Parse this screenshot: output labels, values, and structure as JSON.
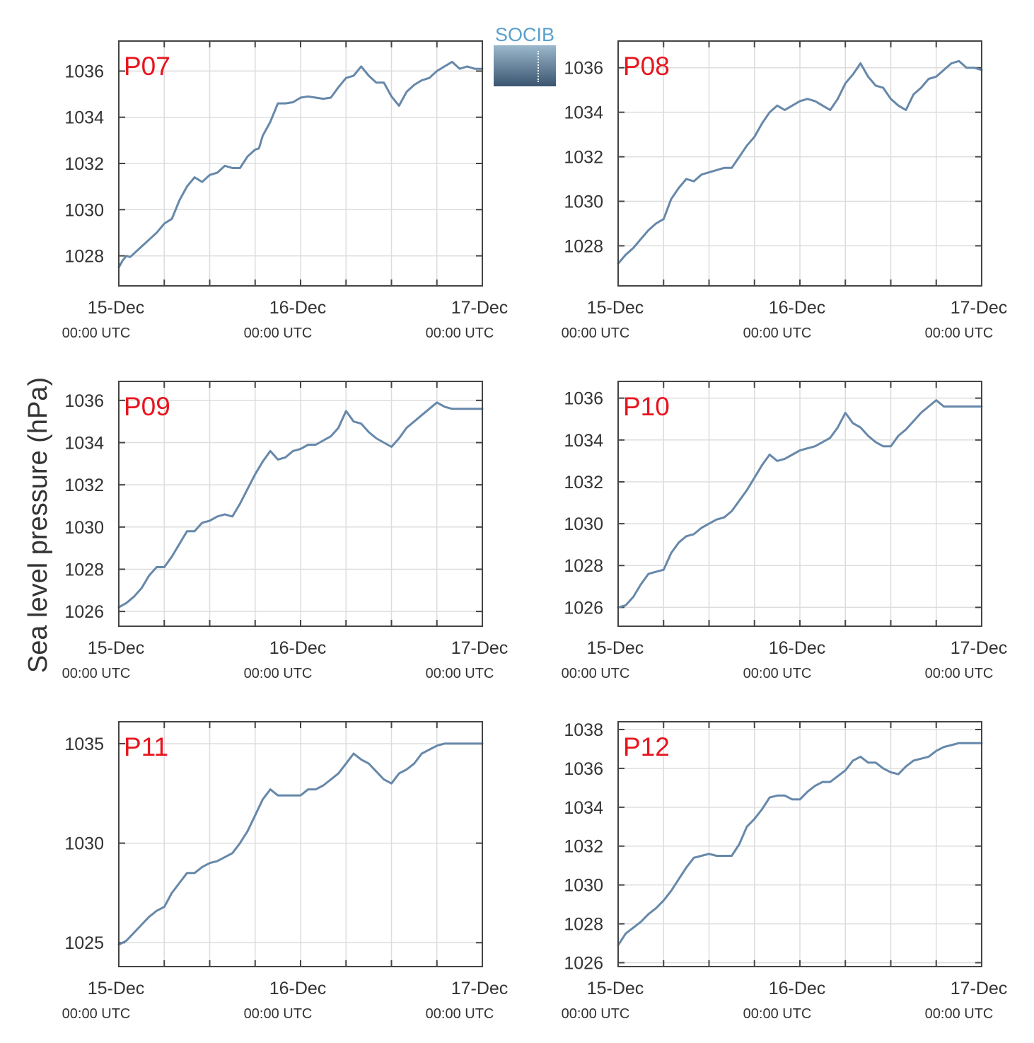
{
  "figure": {
    "ylabel": "Sea level pressure (hPa)",
    "logo_text": "SOCIB"
  },
  "style": {
    "line_color": "#6688aa",
    "label_color": "#e8141e",
    "grid_color": "#dddddd",
    "axis_color": "#444444",
    "text_color": "#333333"
  },
  "chart_data": [
    {
      "type": "line",
      "title": "P07",
      "grid": true,
      "xlabel": "",
      "ylabel": "Sea level pressure (hPa)",
      "x_ticks": [
        {
          "hours": 0,
          "date": "15-Dec",
          "time": "00:00 UTC"
        },
        {
          "hours": 24,
          "date": "16-Dec",
          "time": "00:00 UTC"
        },
        {
          "hours": 48,
          "date": "17-Dec",
          "time": "00:00 UTC"
        }
      ],
      "x_minor_ticks_hours": [
        0,
        6,
        12,
        18,
        24,
        30,
        36,
        42,
        48
      ],
      "xlim_hours": [
        0,
        48
      ],
      "ylim": [
        1026.7,
        1037.3
      ],
      "yticks": [
        1028,
        1030,
        1032,
        1034,
        1036
      ],
      "series": [
        {
          "x_hours": [
            0,
            0.5,
            1,
            1.5,
            2,
            3,
            4,
            5,
            6,
            7,
            8,
            8.5,
            9,
            10,
            11,
            12,
            13,
            14,
            15,
            16,
            17,
            18,
            18.5,
            19,
            20,
            21,
            22,
            23,
            24,
            25,
            26,
            27,
            28,
            29,
            30,
            31,
            32,
            33,
            34,
            35,
            36,
            37,
            38,
            39,
            40,
            41,
            42,
            43,
            44,
            45,
            46,
            47,
            48
          ],
          "values": [
            1027.5,
            1027.8,
            1028.0,
            1027.95,
            1028.1,
            1028.4,
            1028.7,
            1029.0,
            1029.4,
            1029.6,
            1030.4,
            1030.7,
            1031.0,
            1031.4,
            1031.2,
            1031.5,
            1031.6,
            1031.9,
            1031.8,
            1031.8,
            1032.3,
            1032.6,
            1032.65,
            1033.2,
            1033.8,
            1034.6,
            1034.6,
            1034.65,
            1034.85,
            1034.9,
            1034.85,
            1034.8,
            1034.85,
            1035.3,
            1035.7,
            1035.8,
            1036.2,
            1035.8,
            1035.5,
            1035.5,
            1034.9,
            1034.5,
            1035.1,
            1035.4,
            1035.6,
            1035.7,
            1036.0,
            1036.2,
            1036.4,
            1036.1,
            1036.2,
            1036.1,
            1036.1
          ]
        }
      ]
    },
    {
      "type": "line",
      "title": "P08",
      "grid": true,
      "xlabel": "",
      "ylabel": "Sea level pressure (hPa)",
      "x_ticks": [
        {
          "hours": 0,
          "date": "15-Dec",
          "time": "00:00 UTC"
        },
        {
          "hours": 24,
          "date": "16-Dec",
          "time": "00:00 UTC"
        },
        {
          "hours": 48,
          "date": "17-Dec",
          "time": "00:00 UTC"
        }
      ],
      "x_minor_ticks_hours": [
        0,
        6,
        12,
        18,
        24,
        30,
        36,
        42,
        48
      ],
      "xlim_hours": [
        0,
        48
      ],
      "ylim": [
        1026.2,
        1037.2
      ],
      "yticks": [
        1028,
        1030,
        1032,
        1034,
        1036
      ],
      "series": [
        {
          "x_hours": [
            0,
            1,
            2,
            3,
            4,
            5,
            6,
            7,
            8,
            9,
            10,
            11,
            12,
            13,
            14,
            15,
            16,
            17,
            18,
            19,
            20,
            21,
            22,
            23,
            24,
            25,
            26,
            27,
            28,
            29,
            30,
            31,
            32,
            33,
            34,
            35,
            36,
            37,
            38,
            39,
            40,
            41,
            42,
            43,
            44,
            45,
            46,
            47,
            48
          ],
          "values": [
            1027.2,
            1027.6,
            1027.9,
            1028.3,
            1028.7,
            1029.0,
            1029.2,
            1030.1,
            1030.6,
            1031.0,
            1030.9,
            1031.2,
            1031.3,
            1031.4,
            1031.5,
            1031.5,
            1032.0,
            1032.5,
            1032.9,
            1033.5,
            1034.0,
            1034.3,
            1034.1,
            1034.3,
            1034.5,
            1034.6,
            1034.5,
            1034.3,
            1034.1,
            1034.6,
            1035.3,
            1035.7,
            1036.2,
            1035.6,
            1035.2,
            1035.1,
            1034.6,
            1034.3,
            1034.1,
            1034.8,
            1035.1,
            1035.5,
            1035.6,
            1035.9,
            1036.2,
            1036.3,
            1036.0,
            1036.0,
            1035.9
          ]
        }
      ]
    },
    {
      "type": "line",
      "title": "P09",
      "grid": true,
      "xlabel": "",
      "ylabel": "Sea level pressure (hPa)",
      "x_ticks": [
        {
          "hours": 0,
          "date": "15-Dec",
          "time": "00:00 UTC"
        },
        {
          "hours": 24,
          "date": "16-Dec",
          "time": "00:00 UTC"
        },
        {
          "hours": 48,
          "date": "17-Dec",
          "time": "00:00 UTC"
        }
      ],
      "x_minor_ticks_hours": [
        0,
        6,
        12,
        18,
        24,
        30,
        36,
        42,
        48
      ],
      "xlim_hours": [
        0,
        48
      ],
      "ylim": [
        1025.3,
        1036.9
      ],
      "yticks": [
        1026,
        1028,
        1030,
        1032,
        1034,
        1036
      ],
      "series": [
        {
          "x_hours": [
            0,
            1,
            2,
            3,
            4,
            5,
            6,
            7,
            8,
            9,
            10,
            11,
            12,
            13,
            14,
            15,
            16,
            17,
            18,
            19,
            20,
            21,
            22,
            23,
            24,
            25,
            26,
            27,
            28,
            29,
            30,
            31,
            32,
            33,
            34,
            35,
            36,
            37,
            38,
            39,
            40,
            41,
            42,
            43,
            44,
            45,
            46,
            47,
            48
          ],
          "values": [
            1026.2,
            1026.4,
            1026.7,
            1027.1,
            1027.7,
            1028.1,
            1028.1,
            1028.6,
            1029.2,
            1029.8,
            1029.8,
            1030.2,
            1030.3,
            1030.5,
            1030.6,
            1030.5,
            1031.1,
            1031.8,
            1032.5,
            1033.1,
            1033.6,
            1033.2,
            1033.3,
            1033.6,
            1033.7,
            1033.9,
            1033.9,
            1034.1,
            1034.3,
            1034.7,
            1035.5,
            1035.0,
            1034.9,
            1034.5,
            1034.2,
            1034.0,
            1033.8,
            1034.2,
            1034.7,
            1035.0,
            1035.3,
            1035.6,
            1035.9,
            1035.7,
            1035.6,
            1035.6,
            1035.6,
            1035.6,
            1035.6
          ]
        }
      ]
    },
    {
      "type": "line",
      "title": "P10",
      "grid": true,
      "xlabel": "",
      "ylabel": "Sea level pressure (hPa)",
      "x_ticks": [
        {
          "hours": 0,
          "date": "15-Dec",
          "time": "00:00 UTC"
        },
        {
          "hours": 24,
          "date": "16-Dec",
          "time": "00:00 UTC"
        },
        {
          "hours": 48,
          "date": "17-Dec",
          "time": "00:00 UTC"
        }
      ],
      "x_minor_ticks_hours": [
        0,
        6,
        12,
        18,
        24,
        30,
        36,
        42,
        48
      ],
      "xlim_hours": [
        0,
        48
      ],
      "ylim": [
        1025.1,
        1036.8
      ],
      "yticks": [
        1026,
        1028,
        1030,
        1032,
        1034,
        1036
      ],
      "series": [
        {
          "x_hours": [
            0,
            1,
            2,
            3,
            4,
            5,
            6,
            7,
            8,
            9,
            10,
            11,
            12,
            13,
            14,
            15,
            16,
            17,
            18,
            19,
            20,
            21,
            22,
            23,
            24,
            25,
            26,
            27,
            28,
            29,
            30,
            31,
            32,
            33,
            34,
            35,
            36,
            37,
            38,
            39,
            40,
            41,
            42,
            43,
            44,
            45,
            46,
            47,
            48
          ],
          "values": [
            1026.0,
            1026.1,
            1026.5,
            1027.1,
            1027.6,
            1027.7,
            1027.8,
            1028.6,
            1029.1,
            1029.4,
            1029.5,
            1029.8,
            1030.0,
            1030.2,
            1030.3,
            1030.6,
            1031.1,
            1031.6,
            1032.2,
            1032.8,
            1033.3,
            1033.0,
            1033.1,
            1033.3,
            1033.5,
            1033.6,
            1033.7,
            1033.9,
            1034.1,
            1034.6,
            1035.3,
            1034.8,
            1034.6,
            1034.2,
            1033.9,
            1033.7,
            1033.7,
            1034.2,
            1034.5,
            1034.9,
            1035.3,
            1035.6,
            1035.9,
            1035.6,
            1035.6,
            1035.6,
            1035.6,
            1035.6,
            1035.6
          ]
        }
      ]
    },
    {
      "type": "line",
      "title": "P11",
      "grid": true,
      "xlabel": "",
      "ylabel": "Sea level pressure (hPa)",
      "x_ticks": [
        {
          "hours": 0,
          "date": "15-Dec",
          "time": "00:00 UTC"
        },
        {
          "hours": 24,
          "date": "16-Dec",
          "time": "00:00 UTC"
        },
        {
          "hours": 48,
          "date": "17-Dec",
          "time": "00:00 UTC"
        }
      ],
      "x_minor_ticks_hours": [
        0,
        6,
        12,
        18,
        24,
        30,
        36,
        42,
        48
      ],
      "xlim_hours": [
        0,
        48
      ],
      "ylim": [
        1023.8,
        1036.1
      ],
      "yticks": [
        1025,
        1030,
        1035
      ],
      "series": [
        {
          "x_hours": [
            0,
            1,
            2,
            3,
            4,
            5,
            6,
            7,
            8,
            9,
            10,
            11,
            12,
            13,
            14,
            15,
            16,
            17,
            18,
            19,
            20,
            21,
            22,
            23,
            24,
            25,
            26,
            27,
            28,
            29,
            30,
            31,
            32,
            33,
            34,
            35,
            36,
            37,
            38,
            39,
            40,
            41,
            42,
            43,
            44,
            45,
            46,
            47,
            48
          ],
          "values": [
            1024.9,
            1025.1,
            1025.5,
            1025.9,
            1026.3,
            1026.6,
            1026.8,
            1027.5,
            1028.0,
            1028.5,
            1028.5,
            1028.8,
            1029.0,
            1029.1,
            1029.3,
            1029.5,
            1030.0,
            1030.6,
            1031.4,
            1032.2,
            1032.7,
            1032.4,
            1032.4,
            1032.4,
            1032.4,
            1032.7,
            1032.7,
            1032.9,
            1033.2,
            1033.5,
            1034.0,
            1034.5,
            1034.2,
            1034.0,
            1033.6,
            1033.2,
            1033.0,
            1033.5,
            1033.7,
            1034.0,
            1034.5,
            1034.7,
            1034.9,
            1035.0,
            1035.0,
            1035.0,
            1035.0,
            1035.0,
            1035.0
          ]
        }
      ]
    },
    {
      "type": "line",
      "title": "P12",
      "grid": true,
      "xlabel": "",
      "ylabel": "Sea level pressure (hPa)",
      "x_ticks": [
        {
          "hours": 0,
          "date": "15-Dec",
          "time": "00:00 UTC"
        },
        {
          "hours": 24,
          "date": "16-Dec",
          "time": "00:00 UTC"
        },
        {
          "hours": 48,
          "date": "17-Dec",
          "time": "00:00 UTC"
        }
      ],
      "x_minor_ticks_hours": [
        0,
        6,
        12,
        18,
        24,
        30,
        36,
        42,
        48
      ],
      "xlim_hours": [
        0,
        48
      ],
      "ylim": [
        1025.8,
        1038.4
      ],
      "yticks": [
        1026,
        1028,
        1030,
        1032,
        1034,
        1036,
        1038
      ],
      "series": [
        {
          "x_hours": [
            0,
            1,
            2,
            3,
            4,
            5,
            6,
            7,
            8,
            9,
            10,
            11,
            12,
            13,
            14,
            15,
            16,
            17,
            18,
            19,
            20,
            21,
            22,
            23,
            24,
            25,
            26,
            27,
            28,
            29,
            30,
            31,
            32,
            33,
            34,
            35,
            36,
            37,
            38,
            39,
            40,
            41,
            42,
            43,
            44,
            45,
            46,
            47,
            48
          ],
          "values": [
            1026.9,
            1027.5,
            1027.8,
            1028.1,
            1028.5,
            1028.8,
            1029.2,
            1029.7,
            1030.3,
            1030.9,
            1031.4,
            1031.5,
            1031.6,
            1031.5,
            1031.5,
            1031.5,
            1032.1,
            1033.0,
            1033.4,
            1033.9,
            1034.5,
            1034.6,
            1034.6,
            1034.4,
            1034.4,
            1034.8,
            1035.1,
            1035.3,
            1035.3,
            1035.6,
            1035.9,
            1036.4,
            1036.6,
            1036.3,
            1036.3,
            1036.0,
            1035.8,
            1035.7,
            1036.1,
            1036.4,
            1036.5,
            1036.6,
            1036.9,
            1037.1,
            1037.2,
            1037.3,
            1037.3,
            1037.3,
            1037.3
          ]
        }
      ]
    }
  ]
}
